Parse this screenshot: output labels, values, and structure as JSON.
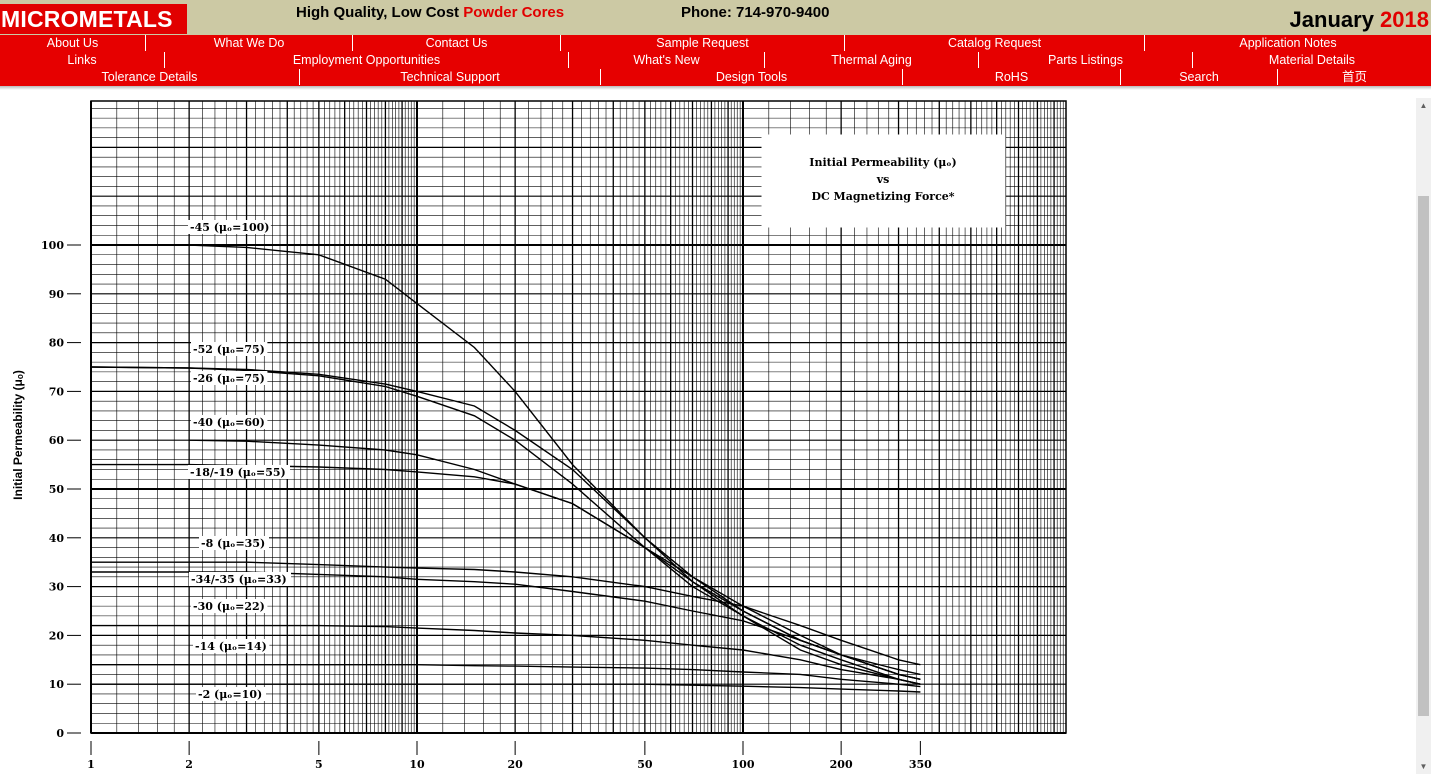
{
  "header": {
    "logo": "MICROMETALS",
    "tagline_prefix": "High Quality, Low Cost ",
    "tagline_highlight": "Powder Cores",
    "phone": "Phone: 714-970-9400",
    "date_month": "January ",
    "date_year": "2018"
  },
  "nav": {
    "row1": [
      "About Us",
      "What We Do",
      "Contact Us",
      "Sample Request",
      "Catalog Request",
      "Application Notes"
    ],
    "row2": [
      "Links",
      "Employment Opportunities",
      "What's New",
      "Thermal Aging",
      "Parts Listings",
      "Material Details"
    ],
    "row3": [
      "Tolerance Details",
      "Technical Support",
      "Design Tools",
      "RoHS",
      "Search",
      "首页"
    ]
  },
  "colors": {
    "brand_red": "#e10000",
    "header_bg": "#ccc9a4",
    "nav_bg": "#e60000"
  },
  "scrollbar": {
    "up_icon": "triangle-up-icon",
    "down_icon": "triangle-down-icon"
  },
  "chart_data": {
    "type": "line",
    "title_line1": "Initial Permeability (μₒ)",
    "title_line2": "vs",
    "title_line3": "DC Magnetizing Force*",
    "ylabel": "Initial Permeability (μₒ)",
    "xlabel": "",
    "x_scale": "log",
    "xlim": [
      1,
      1000
    ],
    "ylim": [
      0,
      130
    ],
    "x_ticks": [
      1,
      2,
      5,
      10,
      20,
      50,
      100,
      200,
      350
    ],
    "y_ticks": [
      0,
      10,
      20,
      30,
      40,
      50,
      60,
      70,
      80,
      90,
      100
    ],
    "grid": true,
    "series": [
      {
        "name": "-45 (μₒ=100)",
        "x": [
          2,
          3,
          5,
          8,
          10,
          15,
          20,
          30,
          50,
          70,
          100,
          150,
          200,
          300,
          350
        ],
        "y": [
          100,
          99.5,
          98,
          93,
          88,
          79,
          70,
          55,
          40,
          31,
          24,
          17,
          14,
          11,
          10
        ]
      },
      {
        "name": "-52 (μₒ=75)",
        "x": [
          1,
          2,
          3,
          5,
          8,
          10,
          15,
          20,
          30,
          50,
          70,
          100,
          150,
          200,
          300,
          350
        ],
        "y": [
          75,
          74.8,
          74.5,
          73.5,
          71.5,
          70,
          67,
          62,
          54,
          40,
          32,
          25,
          19,
          16,
          12,
          11
        ]
      },
      {
        "name": "-26 (μₒ=75)",
        "x": [
          1,
          2,
          3,
          5,
          8,
          10,
          15,
          20,
          30,
          50,
          70,
          100,
          150,
          200,
          300,
          350
        ],
        "y": [
          75,
          74.8,
          74.3,
          73.2,
          71,
          69,
          65,
          60,
          51,
          38,
          30,
          24,
          18,
          15,
          11,
          10
        ]
      },
      {
        "name": "-40 (μₒ=60)",
        "x": [
          2,
          3,
          5,
          8,
          10,
          15,
          20,
          30,
          50,
          70,
          100,
          150,
          200,
          300,
          350
        ],
        "y": [
          60,
          59.8,
          59,
          58,
          57,
          54,
          51,
          47,
          38,
          31,
          25,
          19,
          16,
          12,
          11
        ]
      },
      {
        "name": "-18/-19 (μₒ=55)",
        "x": [
          1,
          2,
          3,
          5,
          8,
          10,
          15,
          20,
          30,
          50,
          70,
          100,
          150,
          200,
          300,
          350
        ],
        "y": [
          55,
          55,
          54.8,
          54.5,
          54,
          53.5,
          52.5,
          51,
          47,
          38,
          32,
          26,
          20,
          16,
          12,
          11
        ]
      },
      {
        "name": "-8 (μₒ=35)",
        "x": [
          1,
          2,
          3,
          5,
          8,
          10,
          15,
          20,
          30,
          50,
          70,
          100,
          150,
          200,
          300,
          350
        ],
        "y": [
          35,
          35,
          35,
          34.5,
          34,
          33.8,
          33.5,
          33,
          32,
          30,
          28,
          26,
          22,
          19,
          15,
          14
        ]
      },
      {
        "name": "-34/-35 (μₒ=33)",
        "x": [
          1,
          2,
          3,
          5,
          8,
          10,
          15,
          20,
          30,
          50,
          70,
          100,
          150,
          200,
          300,
          350
        ],
        "y": [
          33,
          33,
          33,
          32.5,
          32,
          31.5,
          31,
          30.5,
          29,
          27,
          25,
          23,
          19,
          16,
          13,
          12
        ]
      },
      {
        "name": "-30 (μₒ=22)",
        "x": [
          1,
          2,
          3,
          5,
          8,
          10,
          15,
          20,
          30,
          50,
          70,
          100,
          150,
          200,
          300,
          350
        ],
        "y": [
          22,
          22,
          22,
          22,
          21.8,
          21.5,
          21,
          20.5,
          20,
          19,
          18,
          17,
          15,
          13,
          11,
          10
        ]
      },
      {
        "name": "-14 (μₒ=14)",
        "x": [
          1,
          2,
          3,
          5,
          8,
          10,
          15,
          20,
          30,
          50,
          70,
          100,
          150,
          200,
          300,
          350
        ],
        "y": [
          14,
          14,
          14,
          14,
          14,
          14,
          13.8,
          13.7,
          13.5,
          13.3,
          13,
          12.5,
          12,
          11,
          10,
          9.5
        ]
      },
      {
        "name": "-2 (μₒ=10)",
        "x": [
          1,
          2,
          3,
          5,
          8,
          10,
          15,
          20,
          30,
          50,
          70,
          100,
          150,
          200,
          300,
          350
        ],
        "y": [
          10,
          10,
          10,
          10,
          10,
          10,
          10,
          10,
          10,
          10,
          9.8,
          9.6,
          9.3,
          9,
          8.6,
          8.4
        ]
      }
    ]
  }
}
